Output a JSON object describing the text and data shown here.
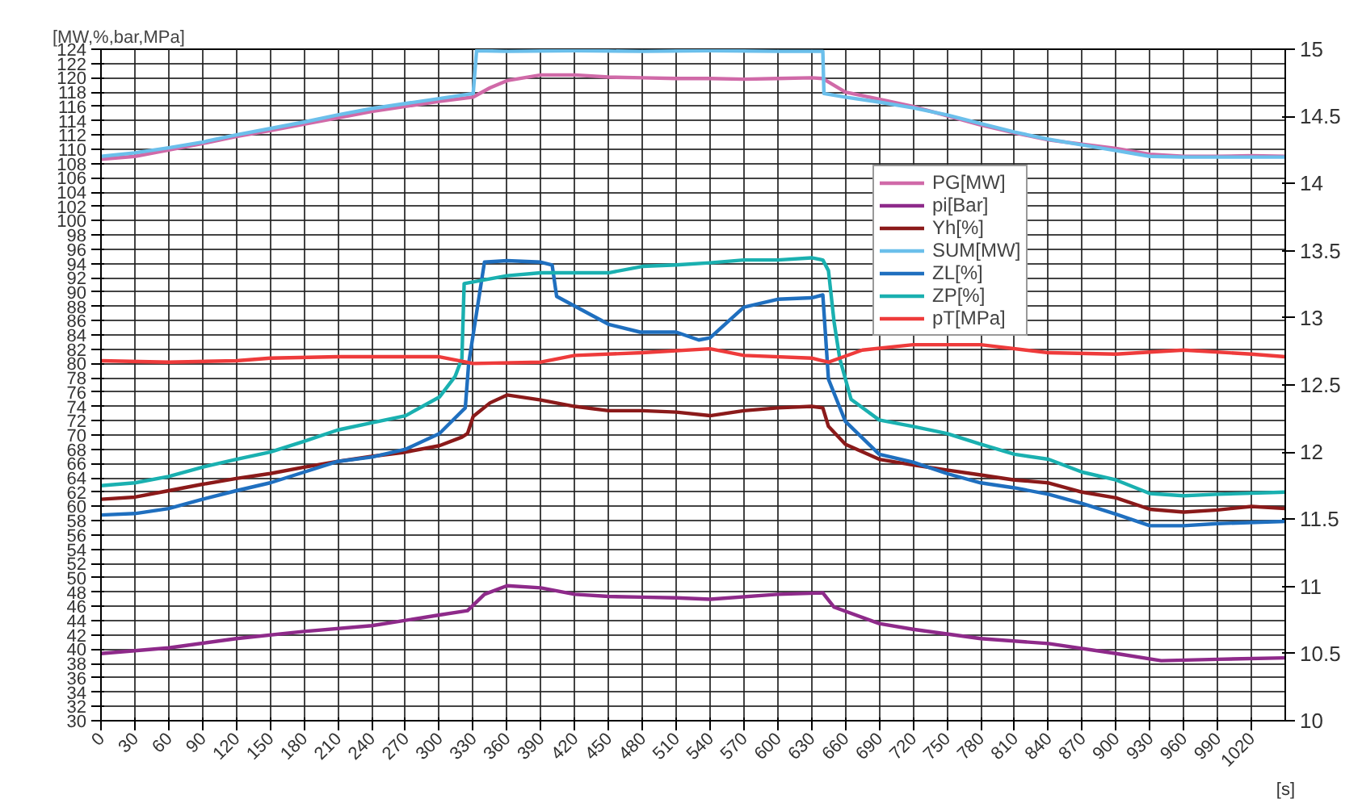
{
  "chart_data": {
    "type": "line",
    "ylabel": "[MW,%,bar,MPa]",
    "xlabel": "[s]",
    "xlim": [
      0,
      1050
    ],
    "ylim": [
      30,
      124
    ],
    "y2lim": [
      10,
      15
    ],
    "xticks": [
      0,
      30,
      60,
      90,
      120,
      150,
      180,
      210,
      240,
      270,
      300,
      330,
      360,
      390,
      420,
      450,
      480,
      510,
      540,
      570,
      600,
      630,
      660,
      690,
      720,
      750,
      780,
      810,
      840,
      870,
      900,
      930,
      960,
      990,
      1020
    ],
    "yticks": [
      30,
      32,
      34,
      36,
      38,
      40,
      42,
      44,
      46,
      48,
      50,
      52,
      54,
      56,
      58,
      60,
      62,
      64,
      66,
      68,
      70,
      72,
      74,
      76,
      78,
      80,
      82,
      84,
      86,
      88,
      90,
      92,
      94,
      96,
      98,
      100,
      102,
      104,
      106,
      108,
      110,
      112,
      114,
      116,
      118,
      120,
      122,
      124
    ],
    "y2ticks": [
      10,
      10.5,
      11,
      11.5,
      12,
      12.5,
      13,
      13.5,
      14,
      14.5,
      15
    ],
    "grid": true,
    "legend": "top right",
    "line_style": "solid",
    "marker": "none",
    "series": [
      {
        "name": "PG[MW]",
        "color": "#d06aa8",
        "x": [
          0,
          30,
          60,
          90,
          120,
          150,
          180,
          210,
          240,
          270,
          300,
          330,
          345,
          360,
          390,
          420,
          450,
          480,
          510,
          540,
          570,
          600,
          630,
          640,
          660,
          690,
          720,
          750,
          780,
          810,
          840,
          870,
          900,
          930,
          960,
          990,
          1020,
          1050
        ],
        "values": [
          108.6,
          109,
          109.9,
          110.8,
          111.8,
          112.6,
          113.5,
          114.4,
          115.3,
          116,
          116.7,
          117.3,
          118.6,
          119.6,
          120.4,
          120.4,
          120.1,
          120,
          119.9,
          119.9,
          119.8,
          119.9,
          120,
          119.9,
          118,
          117,
          116,
          114.7,
          113.4,
          112.3,
          111.3,
          110.7,
          110.1,
          109.3,
          109,
          109,
          109.1,
          109
        ]
      },
      {
        "name": "pi[Bar]",
        "color": "#8e2a8a",
        "x": [
          0,
          60,
          120,
          180,
          240,
          300,
          325,
          340,
          360,
          390,
          420,
          450,
          480,
          510,
          540,
          600,
          640,
          650,
          690,
          720,
          780,
          840,
          900,
          940,
          990,
          1050
        ],
        "values": [
          39.4,
          40.2,
          41.5,
          42.5,
          43.3,
          44.8,
          45.4,
          47.7,
          48.9,
          48.6,
          47.7,
          47.4,
          47.3,
          47.2,
          47,
          47.7,
          47.9,
          45.9,
          43.6,
          42.8,
          41.5,
          40.8,
          39.4,
          38.4,
          38.6,
          38.8
        ]
      },
      {
        "name": "Yh[%]",
        "color": "#8b1a1a",
        "x": [
          0,
          30,
          60,
          90,
          120,
          150,
          180,
          210,
          240,
          270,
          300,
          320,
          325,
          330,
          345,
          360,
          390,
          420,
          450,
          480,
          510,
          540,
          570,
          600,
          630,
          640,
          645,
          660,
          690,
          720,
          750,
          780,
          810,
          840,
          870,
          900,
          930,
          960,
          990,
          1020,
          1050
        ],
        "values": [
          61,
          61.3,
          62.2,
          63.1,
          63.9,
          64.6,
          65.5,
          66.3,
          67,
          67.6,
          68.5,
          69.7,
          70.2,
          72.6,
          74.5,
          75.6,
          74.9,
          74,
          73.4,
          73.4,
          73.2,
          72.7,
          73.4,
          73.8,
          74,
          73.8,
          71.2,
          68.7,
          66.6,
          65.8,
          65.1,
          64.4,
          63.7,
          63.3,
          62,
          61.2,
          59.6,
          59.2,
          59.5,
          60,
          59.7
        ]
      },
      {
        "name": "SUM[MW]",
        "color": "#6bbfeb",
        "x": [
          0,
          30,
          60,
          90,
          120,
          150,
          180,
          210,
          240,
          270,
          300,
          330,
          333,
          360,
          420,
          480,
          540,
          600,
          640,
          641,
          660,
          690,
          720,
          750,
          780,
          810,
          840,
          870,
          900,
          930,
          960,
          1050
        ],
        "values": [
          109,
          109.5,
          110.2,
          111,
          112,
          112.9,
          113.8,
          114.8,
          115.7,
          116.4,
          117.1,
          117.8,
          123.8,
          123.7,
          123.8,
          123.7,
          123.8,
          123.7,
          123.7,
          117.8,
          117.3,
          116.6,
          115.8,
          114.8,
          113.6,
          112.4,
          111.4,
          110.6,
          109.8,
          109,
          108.9,
          108.9
        ]
      },
      {
        "name": "ZL[%]",
        "color": "#1f6fbf",
        "x": [
          0,
          30,
          60,
          90,
          120,
          150,
          180,
          210,
          240,
          270,
          300,
          323,
          326,
          340,
          360,
          390,
          400,
          404,
          430,
          450,
          478,
          510,
          530,
          540,
          570,
          600,
          630,
          640,
          645,
          660,
          690,
          720,
          750,
          780,
          810,
          840,
          870,
          900,
          930,
          960,
          990,
          1050
        ],
        "values": [
          58.8,
          59,
          59.7,
          61,
          62.2,
          63.3,
          64.8,
          66.3,
          66.9,
          68,
          70.2,
          73.8,
          80,
          94.2,
          94.4,
          94.2,
          93.8,
          89.4,
          87.2,
          85.5,
          84.4,
          84.4,
          83.3,
          83.6,
          87.9,
          89,
          89.2,
          89.6,
          77.8,
          71.9,
          67.3,
          66.2,
          64.6,
          63.3,
          62.6,
          61.7,
          60.4,
          58.9,
          57.3,
          57.3,
          57.6,
          57.9
        ]
      },
      {
        "name": "ZP[%]",
        "color": "#1ab0b0",
        "x": [
          0,
          30,
          60,
          90,
          120,
          150,
          180,
          210,
          240,
          270,
          300,
          314,
          320,
          322,
          360,
          390,
          450,
          480,
          510,
          540,
          570,
          600,
          630,
          640,
          645,
          650,
          655,
          665,
          690,
          720,
          750,
          780,
          810,
          840,
          870,
          900,
          930,
          960,
          990,
          1050
        ],
        "values": [
          62.9,
          63.3,
          64.2,
          65.5,
          66.6,
          67.6,
          69.1,
          70.7,
          71.7,
          72.7,
          75.3,
          78.2,
          80.7,
          91.2,
          92.3,
          92.7,
          92.7,
          93.6,
          93.8,
          94.1,
          94.5,
          94.5,
          94.8,
          94.5,
          93,
          85.8,
          80.7,
          75,
          72.1,
          71.2,
          70.2,
          68.7,
          67.3,
          66.6,
          64.8,
          63.7,
          61.8,
          61.5,
          61.7,
          62
        ]
      },
      {
        "name": "pT[MPa]",
        "color": "#ee3b3b",
        "axis": "y2",
        "x": [
          0,
          60,
          120,
          150,
          210,
          300,
          330,
          390,
          420,
          480,
          540,
          570,
          630,
          645,
          675,
          720,
          780,
          840,
          900,
          960,
          1020,
          1050
        ],
        "values": [
          12.68,
          12.67,
          12.68,
          12.7,
          12.71,
          12.71,
          12.66,
          12.67,
          12.72,
          12.74,
          12.77,
          12.72,
          12.7,
          12.67,
          12.76,
          12.8,
          12.8,
          12.74,
          12.73,
          12.76,
          12.73,
          12.71
        ]
      }
    ]
  }
}
